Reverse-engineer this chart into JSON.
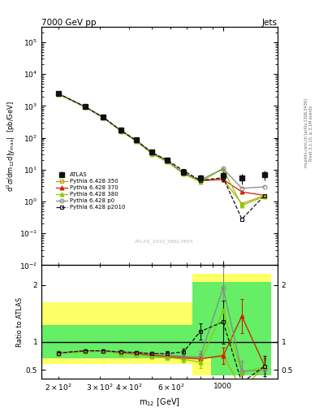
{
  "title_left": "7000 GeV pp",
  "title_right": "Jets",
  "ylabel_main": "d$^2\\sigma$/dm$_{12}$d|y$_{\\rm max}$|  [pb/GeV]",
  "ylabel_ratio": "Ratio to ATLAS",
  "xlabel": "m$_{12}$ [GeV]",
  "watermark": "ATLAS_2010_S8817804",
  "right_label": "Rivet 3.1.10, ≥ 3.1M events",
  "right_label2": "mcplots.cern.ch [arXiv:1306.3436]",
  "x_centers": [
    200,
    260,
    310,
    370,
    430,
    500,
    580,
    680,
    800,
    1000,
    1200,
    1500
  ],
  "atlas_y": [
    2500,
    950,
    450,
    175,
    85,
    35,
    20,
    8.5,
    5.5,
    6.5,
    5.5,
    7.0
  ],
  "atlas_yerr_lo": [
    200,
    80,
    40,
    15,
    7,
    3,
    2,
    1.2,
    1.5,
    2.5,
    2.0,
    2.5
  ],
  "atlas_yerr_hi": [
    200,
    80,
    40,
    15,
    7,
    3,
    2,
    1.2,
    1.5,
    2.5,
    2.0,
    2.5
  ],
  "py350_y": [
    2450,
    940,
    440,
    165,
    80,
    33,
    18.5,
    7.8,
    4.6,
    5.0,
    0.85,
    1.55
  ],
  "py370_y": [
    2450,
    940,
    440,
    165,
    80,
    33,
    18.5,
    7.8,
    4.5,
    4.9,
    2.0,
    1.55
  ],
  "py380_y": [
    2350,
    920,
    430,
    160,
    77,
    31,
    17.5,
    7.3,
    4.2,
    10.5,
    0.75,
    1.45
  ],
  "py_p0_y": [
    2450,
    940,
    440,
    167,
    81,
    34,
    18.8,
    7.9,
    4.7,
    10.8,
    2.6,
    2.9
  ],
  "py_p2010_y": [
    2450,
    940,
    440,
    167,
    81,
    34,
    20.0,
    9.2,
    4.6,
    5.6,
    0.28,
    1.55
  ],
  "ratio_x": [
    200,
    260,
    310,
    370,
    430,
    500,
    580,
    680,
    800,
    1000,
    1200,
    1500
  ],
  "ratio_350": [
    0.8,
    0.84,
    0.84,
    0.8,
    0.79,
    0.76,
    0.74,
    0.71,
    0.69,
    0.77,
    0.15,
    0.57
  ],
  "ratio_370": [
    0.8,
    0.84,
    0.84,
    0.8,
    0.79,
    0.76,
    0.74,
    0.72,
    0.7,
    0.75,
    1.45,
    0.57
  ],
  "ratio_380": [
    0.79,
    0.82,
    0.83,
    0.79,
    0.77,
    0.74,
    0.72,
    0.69,
    0.64,
    1.55,
    0.45,
    0.56
  ],
  "ratio_p0": [
    0.8,
    0.84,
    0.84,
    0.82,
    0.81,
    0.79,
    0.77,
    0.74,
    0.73,
    1.95,
    0.48,
    0.5
  ],
  "ratio_p2010": [
    0.8,
    0.84,
    0.84,
    0.82,
    0.81,
    0.79,
    0.79,
    0.82,
    1.18,
    1.35,
    0.28,
    0.57
  ],
  "ratio_350_err": [
    0.04,
    0.03,
    0.03,
    0.03,
    0.03,
    0.03,
    0.04,
    0.05,
    0.09,
    0.14,
    0.05,
    0.13
  ],
  "ratio_370_err": [
    0.04,
    0.03,
    0.03,
    0.03,
    0.03,
    0.03,
    0.04,
    0.05,
    0.09,
    0.14,
    0.3,
    0.13
  ],
  "ratio_380_err": [
    0.04,
    0.03,
    0.03,
    0.03,
    0.03,
    0.03,
    0.04,
    0.05,
    0.11,
    0.32,
    0.18,
    0.13
  ],
  "ratio_p0_err": [
    0.04,
    0.03,
    0.03,
    0.03,
    0.03,
    0.03,
    0.04,
    0.05,
    0.11,
    0.38,
    0.18,
    0.18
  ],
  "ratio_p2010_err": [
    0.04,
    0.03,
    0.03,
    0.03,
    0.03,
    0.03,
    0.04,
    0.06,
    0.14,
    0.38,
    0.18,
    0.18
  ],
  "band_x_edges": [
    170,
    230,
    290,
    340,
    400,
    460,
    540,
    630,
    740,
    890,
    1100,
    1350,
    1600
  ],
  "band_yellow_lo": [
    0.6,
    0.6,
    0.6,
    0.6,
    0.6,
    0.6,
    0.6,
    0.6,
    0.4,
    0.4,
    0.4,
    0.4
  ],
  "band_yellow_hi": [
    1.7,
    1.7,
    1.7,
    1.7,
    1.7,
    1.7,
    1.7,
    1.7,
    2.2,
    2.2,
    2.2,
    2.2
  ],
  "band_green_lo": [
    0.7,
    0.7,
    0.7,
    0.7,
    0.7,
    0.7,
    0.7,
    0.7,
    0.7,
    0.4,
    0.4,
    0.4
  ],
  "band_green_hi": [
    1.3,
    1.3,
    1.3,
    1.3,
    1.3,
    1.3,
    1.3,
    1.3,
    2.05,
    2.05,
    2.05,
    2.05
  ],
  "color_350": "#b8a400",
  "color_370": "#cc2200",
  "color_380": "#88cc00",
  "color_p0": "#888888",
  "color_p2010": "#111111",
  "color_atlas": "#111111",
  "xlim": [
    170,
    1700
  ],
  "ylim_main": [
    0.01,
    300000.0
  ],
  "ylim_ratio": [
    0.35,
    2.35
  ]
}
